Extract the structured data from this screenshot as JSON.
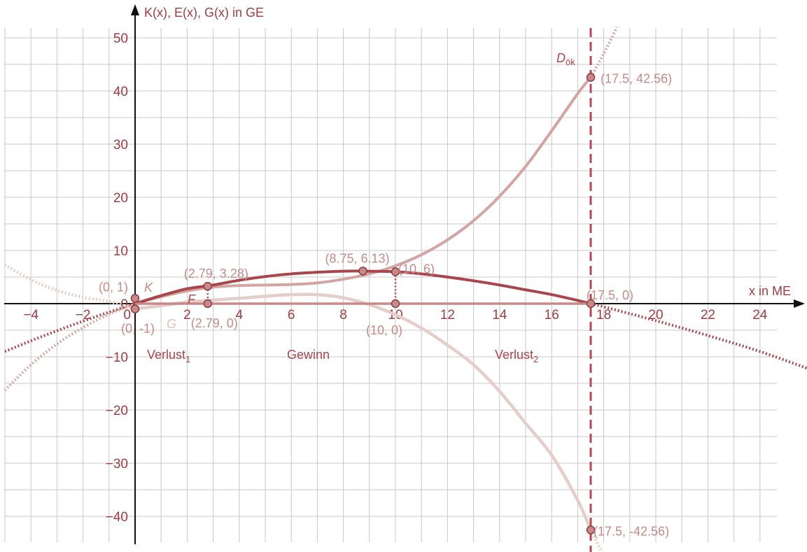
{
  "chart_data": {
    "type": "line",
    "title": "",
    "xlabel": "x in ME",
    "ylabel": "K(x), E(x), G(x) in GE",
    "xlim": [
      -5,
      26
    ],
    "ylim": [
      -45,
      52
    ],
    "grid": true,
    "x_ticks": [
      -4,
      -2,
      0,
      2,
      4,
      6,
      8,
      10,
      12,
      14,
      16,
      18,
      20,
      22,
      24
    ],
    "y_ticks": [
      -40,
      -30,
      -20,
      -10,
      0,
      10,
      20,
      30,
      40,
      50
    ],
    "x_tick_labels": [
      "−4",
      "−2",
      "0",
      "2",
      "4",
      "6",
      "8",
      "10",
      "12",
      "14",
      "16",
      "18",
      "20",
      "22",
      "24"
    ],
    "y_tick_labels": [
      "−40",
      "−30",
      "−20",
      "−10",
      "0",
      "10",
      "20",
      "30",
      "40",
      "50"
    ],
    "series": [
      {
        "name": "K",
        "color": "#d3a4a2",
        "x": [
          -5,
          -4,
          -3,
          -2,
          -1,
          0,
          1,
          2,
          3,
          4,
          5,
          6,
          7,
          8,
          9,
          10,
          11,
          12,
          13,
          14,
          15,
          16,
          17,
          17.5,
          18,
          18.5
        ],
        "y": [
          -16.3,
          -11.5,
          -7.6,
          -4.5,
          -2.0,
          0,
          1.3,
          2.4,
          3.1,
          3.4,
          3.5,
          3.6,
          3.9,
          4.6,
          5.6,
          7.1,
          9.2,
          12.0,
          15.6,
          20.2,
          25.8,
          32.5,
          39.5,
          42.56,
          47.0,
          52.0
        ]
      },
      {
        "name": "E",
        "color": "#a8454d",
        "x": [
          -5,
          -4,
          -3,
          -2,
          -1,
          0,
          1,
          2,
          3,
          4,
          5,
          6,
          7,
          8,
          8.75,
          9,
          10,
          11,
          12,
          13,
          14,
          15,
          16,
          17,
          17.5,
          18,
          20,
          22,
          24,
          26
        ],
        "y": [
          -9.0,
          -7.0,
          -5.1,
          -3.3,
          -1.6,
          0,
          1.5,
          2.8,
          3.5,
          4.4,
          5.1,
          5.6,
          5.9,
          6.1,
          6.13,
          6.1,
          6.0,
          5.6,
          5.0,
          4.3,
          3.5,
          2.6,
          1.7,
          0.6,
          0,
          -0.6,
          -3.2,
          -6.0,
          -9.0,
          -12.5
        ]
      },
      {
        "name": "G",
        "color": "#e5cdca",
        "x": [
          -5,
          -4,
          -3,
          -2,
          -1,
          0,
          1,
          2,
          2.79,
          4,
          5,
          6,
          7,
          8,
          9,
          10,
          11,
          12,
          13,
          14,
          15,
          16,
          17,
          17.5,
          18
        ],
        "y": [
          7.3,
          4.5,
          2.5,
          1.2,
          0.4,
          -1,
          -0.4,
          0.3,
          0.6,
          1.0,
          1.4,
          1.7,
          1.7,
          1.1,
          -0.2,
          -2.1,
          -4.6,
          -7.8,
          -11.5,
          -16.5,
          -22.5,
          -28.5,
          -37.0,
          -42.56,
          -47.5
        ]
      }
    ],
    "points": [
      {
        "label": "(0, 1)",
        "x": 0,
        "y": 1
      },
      {
        "label": "(0, -1)",
        "x": 0,
        "y": -1
      },
      {
        "label": "(2.79, 3.28)",
        "x": 2.79,
        "y": 3.28
      },
      {
        "label": "(2.79, 0)",
        "x": 2.79,
        "y": 0
      },
      {
        "label": "(8.75, 6.13)",
        "x": 8.75,
        "y": 6.13
      },
      {
        "label": "(10, 6)",
        "x": 10,
        "y": 6
      },
      {
        "label": "(10, 0)",
        "x": 10,
        "y": 0
      },
      {
        "label": "(17.5, 0)",
        "x": 17.5,
        "y": 0
      },
      {
        "label": "(17.5, 42.56)",
        "x": 17.5,
        "y": 42.56
      },
      {
        "label": "(17.5, -42.56)",
        "x": 17.5,
        "y": -42.56
      }
    ],
    "vertical_line": {
      "x": 17.5,
      "label_main": "D",
      "label_sub": "ök"
    },
    "annotations": {
      "curve_K": "K",
      "curve_G": "G",
      "point_F": "F",
      "region_1_main": "Verlust",
      "region_1_sub": "1",
      "region_2": "Gewinn",
      "region_3_main": "Verlust",
      "region_3_sub": "2"
    }
  }
}
